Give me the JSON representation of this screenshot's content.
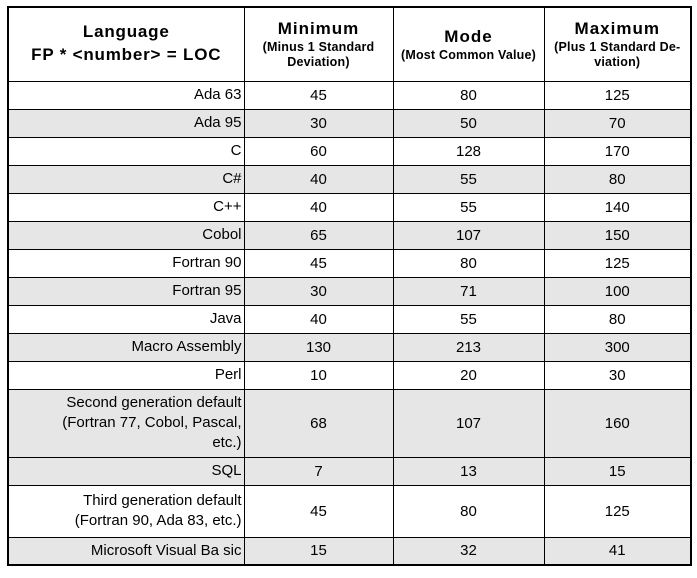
{
  "table": {
    "header": {
      "language": {
        "title": "Language",
        "subtitle": "FP * <number> = LOC"
      },
      "minimum": {
        "title": "Minimum",
        "subtitle": "(Minus 1 Standard\nDeviation)"
      },
      "mode": {
        "title": "Mode",
        "subtitle": "(Most Common Value)"
      },
      "maximum": {
        "title": "Maximum",
        "subtitle": "(Plus 1 Standard De-\nviation)"
      }
    },
    "rows": [
      {
        "language": "Ada 63",
        "min": "45",
        "mode": "80",
        "max": "125"
      },
      {
        "language": "Ada 95",
        "min": "30",
        "mode": "50",
        "max": "70"
      },
      {
        "language": "C",
        "min": "60",
        "mode": "128",
        "max": "170"
      },
      {
        "language": "C#",
        "min": "40",
        "mode": "55",
        "max": "80"
      },
      {
        "language": "C++",
        "min": "40",
        "mode": "55",
        "max": "140"
      },
      {
        "language": "Cobol",
        "min": "65",
        "mode": "107",
        "max": "150"
      },
      {
        "language": "Fortran 90",
        "min": "45",
        "mode": "80",
        "max": "125"
      },
      {
        "language": "Fortran 95",
        "min": "30",
        "mode": "71",
        "max": "100"
      },
      {
        "language": "Java",
        "min": "40",
        "mode": "55",
        "max": "80"
      },
      {
        "language": "Macro Assembly",
        "min": "130",
        "mode": "213",
        "max": "300"
      },
      {
        "language": "Perl",
        "min": "10",
        "mode": "20",
        "max": "30"
      },
      {
        "language": "Second generation default\n(Fortran 77, Cobol, Pascal,\netc.)",
        "min": "68",
        "mode": "107",
        "max": "160"
      },
      {
        "language": "SQL",
        "min": "7",
        "mode": "13",
        "max": "15"
      },
      {
        "language": "Third generation default\n(Fortran 90, Ada 83, etc.)",
        "min": "45",
        "mode": "80",
        "max": "125"
      },
      {
        "language": "Microsoft Visual Ba sic",
        "min": "15",
        "mode": "32",
        "max": "41"
      }
    ],
    "colors": {
      "shaded_row": "#e6e6e6",
      "border": "#000000",
      "text": "#000000"
    }
  }
}
